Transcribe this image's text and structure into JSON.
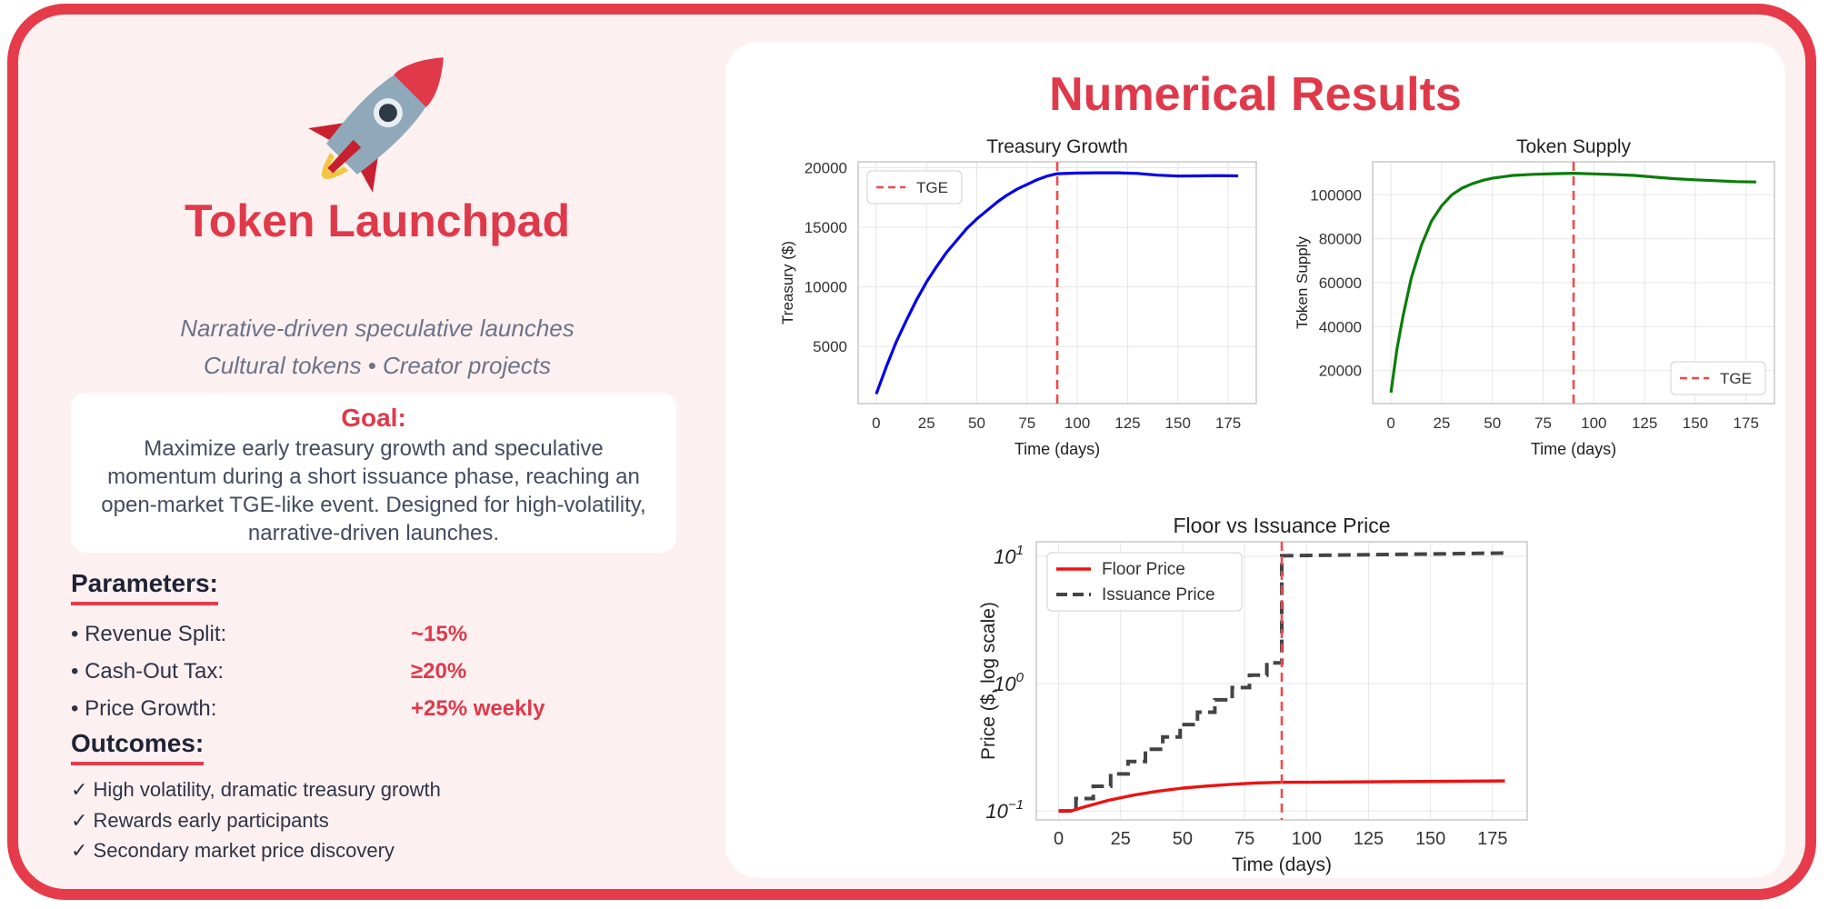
{
  "left": {
    "icon": "rocket-icon",
    "title": "Token Launchpad",
    "subtitle_1": "Narrative-driven speculative launches",
    "subtitle_2": "Cultural tokens • Creator projects",
    "goal_title": "Goal:",
    "goal_text": "Maximize early treasury growth and speculative momentum during a short issuance phase, reaching an open-market TGE-like event. Designed for high-volatility, narrative-driven launches.",
    "parameters_heading": "Parameters:",
    "parameters": [
      {
        "label": "• Revenue Split:",
        "value": "~15%"
      },
      {
        "label": "• Cash-Out Tax:",
        "value": "≥20%"
      },
      {
        "label": "• Price Growth:",
        "value": "+25% weekly"
      }
    ],
    "outcomes_heading": "Outcomes:",
    "outcomes": [
      "✓ High volatility, dramatic treasury growth",
      "✓ Rewards early participants",
      "✓ Secondary market price discovery"
    ]
  },
  "results_title": "Numerical Results",
  "colors": {
    "accent": "#e63b4b",
    "treasury": "#0000ee",
    "supply": "#0a7d0a",
    "floor": "#ee1111",
    "issuance": "#444444",
    "tge": "#f04a4a"
  },
  "chart_data": [
    {
      "type": "line",
      "title": "Treasury Growth",
      "xlabel": "Time (days)",
      "ylabel": "Treasury ($)",
      "xlim": [
        -9,
        189
      ],
      "ylim": [
        200,
        20500
      ],
      "xticks": [
        0,
        25,
        50,
        75,
        100,
        125,
        150,
        175
      ],
      "yticks": [
        5000,
        10000,
        15000,
        20000
      ],
      "legend": [
        {
          "label": "TGE",
          "style": "dashed"
        }
      ],
      "legend_position": "upper-left",
      "tge_x": 90,
      "series": [
        {
          "name": "Treasury",
          "x": [
            0,
            5,
            10,
            15,
            20,
            25,
            30,
            35,
            40,
            45,
            50,
            55,
            60,
            65,
            70,
            75,
            80,
            85,
            90,
            100,
            110,
            120,
            130,
            140,
            150,
            160,
            170,
            180
          ],
          "y": [
            1000,
            3300,
            5400,
            7200,
            8900,
            10400,
            11700,
            12900,
            13900,
            14900,
            15700,
            16400,
            17100,
            17700,
            18200,
            18600,
            19000,
            19300,
            19500,
            19550,
            19580,
            19580,
            19520,
            19380,
            19300,
            19320,
            19340,
            19320
          ]
        }
      ]
    },
    {
      "type": "line",
      "title": "Token Supply",
      "xlabel": "Time (days)",
      "ylabel": "Token Supply",
      "xlim": [
        -9,
        189
      ],
      "ylim": [
        5000,
        115000
      ],
      "xticks": [
        0,
        25,
        50,
        75,
        100,
        125,
        150,
        175
      ],
      "yticks": [
        20000,
        40000,
        60000,
        80000,
        100000
      ],
      "legend": [
        {
          "label": "TGE",
          "style": "dashed"
        }
      ],
      "legend_position": "lower-right",
      "tge_x": 90,
      "series": [
        {
          "name": "Token Supply",
          "x": [
            0,
            3,
            6,
            10,
            15,
            20,
            25,
            30,
            35,
            40,
            45,
            50,
            60,
            70,
            80,
            90,
            100,
            110,
            120,
            130,
            140,
            150,
            160,
            170,
            180
          ],
          "y": [
            10000,
            30000,
            45000,
            62000,
            77000,
            88000,
            95000,
            100000,
            103000,
            105000,
            106500,
            107500,
            108800,
            109300,
            109600,
            109800,
            109500,
            109200,
            108800,
            108000,
            107300,
            106800,
            106400,
            106000,
            105800
          ]
        }
      ]
    },
    {
      "type": "line",
      "title": "Floor vs Issuance Price",
      "xlabel": "Time (days)",
      "ylabel": "Price ($, log scale)",
      "yscale": "log",
      "xlim": [
        -9,
        189
      ],
      "ylim": [
        0.085,
        13
      ],
      "xticks": [
        0,
        25,
        50,
        75,
        100,
        125,
        150,
        175
      ],
      "yticks": [
        {
          "value": 0.1,
          "base": "10",
          "exp": "−1"
        },
        {
          "value": 1,
          "base": "10",
          "exp": "0"
        },
        {
          "value": 10,
          "base": "10",
          "exp": "1"
        }
      ],
      "legend": [
        {
          "label": "Floor Price",
          "style": "solid"
        },
        {
          "label": "Issuance Price",
          "style": "dashed"
        }
      ],
      "legend_position": "upper-left",
      "tge_x": 90,
      "series": [
        {
          "name": "Floor Price",
          "x": [
            0,
            5,
            10,
            20,
            30,
            40,
            50,
            60,
            70,
            80,
            90,
            100,
            120,
            140,
            160,
            180
          ],
          "y": [
            0.1,
            0.1,
            0.107,
            0.121,
            0.133,
            0.143,
            0.151,
            0.157,
            0.162,
            0.166,
            0.168,
            0.168,
            0.169,
            0.17,
            0.171,
            0.172
          ]
        },
        {
          "name": "Issuance Price",
          "step_days": 7,
          "step_factor": 1.25,
          "start": 0.1,
          "tge_x": 90,
          "post_tge_start": 10.1,
          "post_tge_end": 10.6
        }
      ]
    }
  ]
}
